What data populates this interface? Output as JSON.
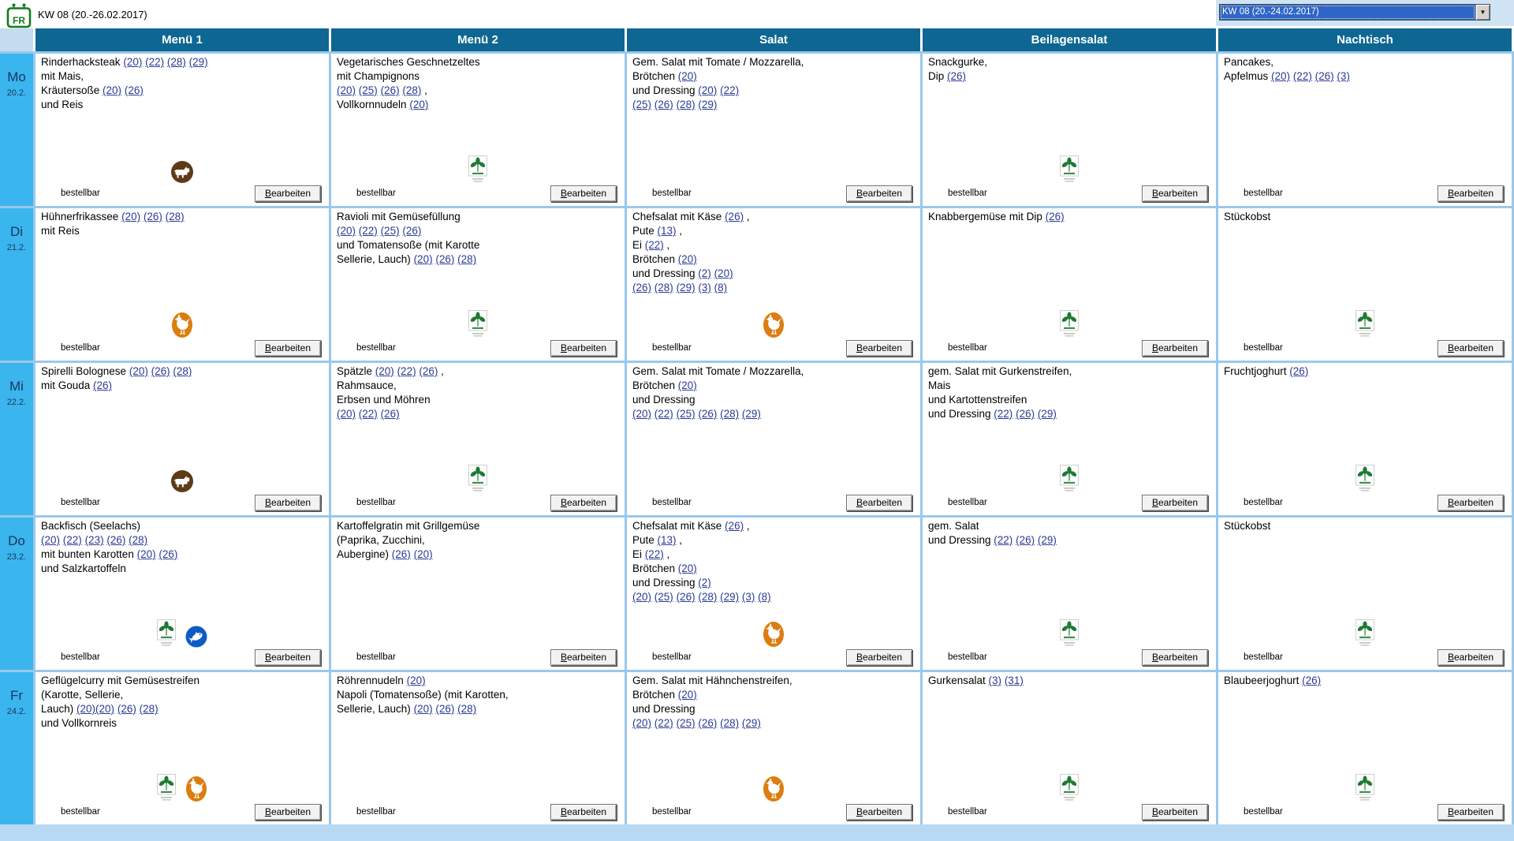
{
  "topbar": {
    "logo_text": "FR",
    "week_label": "KW 08 (20.-26.02.2017)",
    "week_select": {
      "value": "KW 08 (20.-24.02.2017)"
    }
  },
  "table": {
    "columns": [
      "Menü 1",
      "Menü 2",
      "Salat",
      "Beilagensalat",
      "Nachtisch"
    ],
    "column_keys": [
      "menu-1",
      "menu-2",
      "salat",
      "beilagensalat",
      "nachtisch"
    ],
    "cell_footer": {
      "status_label": "bestellbar",
      "edit_button_label": "Bearbeiten"
    },
    "icon_names": {
      "beef": "beef-icon",
      "poultry": "poultry-icon",
      "fish": "fish-icon",
      "veg": "vegetarian-icon"
    },
    "rows": [
      {
        "day": "Mo",
        "date": "20.2.",
        "cells": [
          {
            "lines": [
              "Rinderhacksteak (20) (22) (28) (29)",
              "mit Mais,",
              "Kräutersoße (20) (26)",
              "und Reis"
            ],
            "icons": [
              "beef"
            ]
          },
          {
            "lines": [
              "Vegetarisches Geschnetzeltes",
              "mit Champignons",
              "(20) (25) (26) (28) ,",
              "Vollkornnudeln (20)"
            ],
            "icons": [
              "veg"
            ]
          },
          {
            "lines": [
              "Gem. Salat mit Tomate / Mozzarella,",
              "Brötchen (20)",
              "und Dressing (20) (22)",
              "(25) (26) (28) (29)"
            ],
            "icons": []
          },
          {
            "lines": [
              "Snackgurke,",
              "Dip (26)"
            ],
            "icons": [
              "veg"
            ]
          },
          {
            "lines": [
              "Pancakes,",
              "Apfelmus (20) (22) (26) (3)"
            ],
            "icons": []
          }
        ]
      },
      {
        "day": "Di",
        "date": "21.2.",
        "cells": [
          {
            "lines": [
              "Hühnerfrikassee (20) (26) (28)",
              "mit Reis"
            ],
            "icons": [
              "poultry"
            ]
          },
          {
            "lines": [
              "Ravioli mit Gemüsefüllung",
              "(20) (22) (25) (26)",
              "und Tomatensoße (mit Karotte",
              "Sellerie, Lauch) (20) (26) (28)"
            ],
            "icons": [
              "veg"
            ]
          },
          {
            "lines": [
              "Chefsalat mit Käse (26) ,",
              "Pute (13) ,",
              "Ei (22) ,",
              "Brötchen (20)",
              "und Dressing (2) (20)",
              "(26) (28) (29) (3) (8)"
            ],
            "icons": [
              "poultry"
            ]
          },
          {
            "lines": [
              "Knabbergemüse mit Dip (26)"
            ],
            "icons": [
              "veg"
            ]
          },
          {
            "lines": [
              "Stückobst"
            ],
            "icons": [
              "veg"
            ]
          }
        ]
      },
      {
        "day": "Mi",
        "date": "22.2.",
        "cells": [
          {
            "lines": [
              "Spirelli Bolognese (20) (26) (28)",
              "mit Gouda (26)"
            ],
            "icons": [
              "beef"
            ]
          },
          {
            "lines": [
              "Spätzle (20) (22) (26) ,",
              "Rahmsauce,",
              "Erbsen und Möhren",
              "(20) (22) (26)"
            ],
            "icons": [
              "veg"
            ]
          },
          {
            "lines": [
              "Gem. Salat mit Tomate / Mozzarella,",
              "Brötchen (20)",
              "und Dressing",
              "(20) (22) (25) (26) (28) (29)"
            ],
            "icons": []
          },
          {
            "lines": [
              "gem. Salat mit Gurkenstreifen,",
              "Mais",
              "und Kartottenstreifen",
              "und Dressing (22) (26) (29)"
            ],
            "icons": [
              "veg"
            ]
          },
          {
            "lines": [
              "Fruchtjoghurt (26)"
            ],
            "icons": [
              "veg"
            ]
          }
        ]
      },
      {
        "day": "Do",
        "date": "23.2.",
        "cells": [
          {
            "lines": [
              "Backfisch (Seelachs)",
              "(20) (22) (23) (26) (28)",
              "mit bunten Karotten (20) (26)",
              "und Salzkartoffeln"
            ],
            "icons": [
              "veg",
              "fish"
            ]
          },
          {
            "lines": [
              "Kartoffelgratin mit Grillgemüse",
              "(Paprika, Zucchini,",
              "Aubergine) (26) (20)"
            ],
            "icons": []
          },
          {
            "lines": [
              "Chefsalat mit Käse (26) ,",
              "Pute (13) ,",
              "Ei (22) ,",
              "Brötchen (20)",
              "und Dressing (2)",
              "(20) (25) (26) (28) (29) (3) (8)"
            ],
            "icons": [
              "poultry"
            ]
          },
          {
            "lines": [
              "gem. Salat",
              "und Dressing (22) (26) (29)"
            ],
            "icons": [
              "veg"
            ]
          },
          {
            "lines": [
              "Stückobst"
            ],
            "icons": [
              "veg"
            ]
          }
        ]
      },
      {
        "day": "Fr",
        "date": "24.2.",
        "cells": [
          {
            "lines": [
              "Geflügelcurry mit Gemüsestreifen",
              "(Karotte, Sellerie,",
              "Lauch) (20)(20) (26) (28)",
              "und Vollkornreis"
            ],
            "icons": [
              "veg",
              "poultry"
            ]
          },
          {
            "lines": [
              "Röhrennudeln (20)",
              "Napoli (Tomatensoße) (mit Karotten,",
              "Sellerie, Lauch) (20) (26) (28)"
            ],
            "icons": []
          },
          {
            "lines": [
              "Gem. Salat mit Hähnchenstreifen,",
              "Brötchen (20)",
              "und Dressing",
              "(20) (22) (25) (26) (28) (29)"
            ],
            "icons": [
              "poultry"
            ]
          },
          {
            "lines": [
              "Gurkensalat (3) (31)"
            ],
            "icons": [
              "veg"
            ]
          },
          {
            "lines": [
              "Blaubeerjoghurt (26)"
            ],
            "icons": [
              "veg"
            ]
          }
        ]
      }
    ]
  },
  "colors": {
    "header_blue": "#0e6793",
    "day_cell_blue": "#3bb5ee",
    "grid_line_blue": "#9ac8ec",
    "corner_blue": "#c3dcef",
    "bottom_strip_blue": "#b7d9f3",
    "combo_panel_blue": "#cfe3f5",
    "selection_blue": "#2f66c8",
    "link_blue": "#2b3a94",
    "beef_brown": "#5e3a17",
    "poultry_orange": "#dd7d0f",
    "fish_blue": "#0f5bc4",
    "veg_green": "#1e7a34",
    "logo_green": "#137a1e"
  }
}
